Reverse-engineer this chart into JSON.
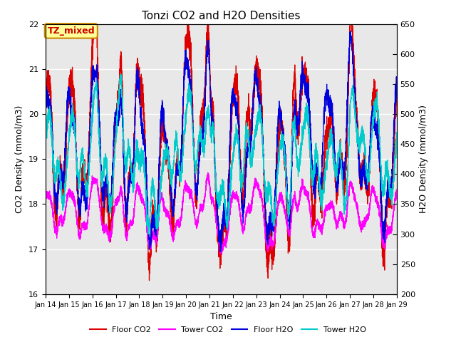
{
  "title": "Tonzi CO2 and H2O Densities",
  "xlabel": "Time",
  "ylabel_left": "CO2 Density (mmol/m3)",
  "ylabel_right": "H2O Density (mmol/m3)",
  "ylim_left": [
    16.0,
    22.0
  ],
  "ylim_right": [
    200,
    650
  ],
  "annotation_text": "TZ_mixed",
  "annotation_bg": "#FFFF99",
  "annotation_border": "#CC8800",
  "colors": {
    "floor_co2": "#DD0000",
    "tower_co2": "#FF00FF",
    "floor_h2o": "#0000DD",
    "tower_h2o": "#00CCCC"
  },
  "legend_labels": [
    "Floor CO2",
    "Tower CO2",
    "Floor H2O",
    "Tower H2O"
  ],
  "x_tick_labels": [
    "Jan 14",
    "Jan 15",
    "Jan 16",
    "Jan 17",
    "Jan 18",
    "Jan 19",
    "Jan 20",
    "Jan 21",
    "Jan 22",
    "Jan 23",
    "Jan 24",
    "Jan 25",
    "Jan 26",
    "Jan 27",
    "Jan 28",
    "Jan 29"
  ],
  "bg_color": "#E8E8E8",
  "grid_color": "#FFFFFF",
  "n_points": 5000,
  "seed": 7
}
